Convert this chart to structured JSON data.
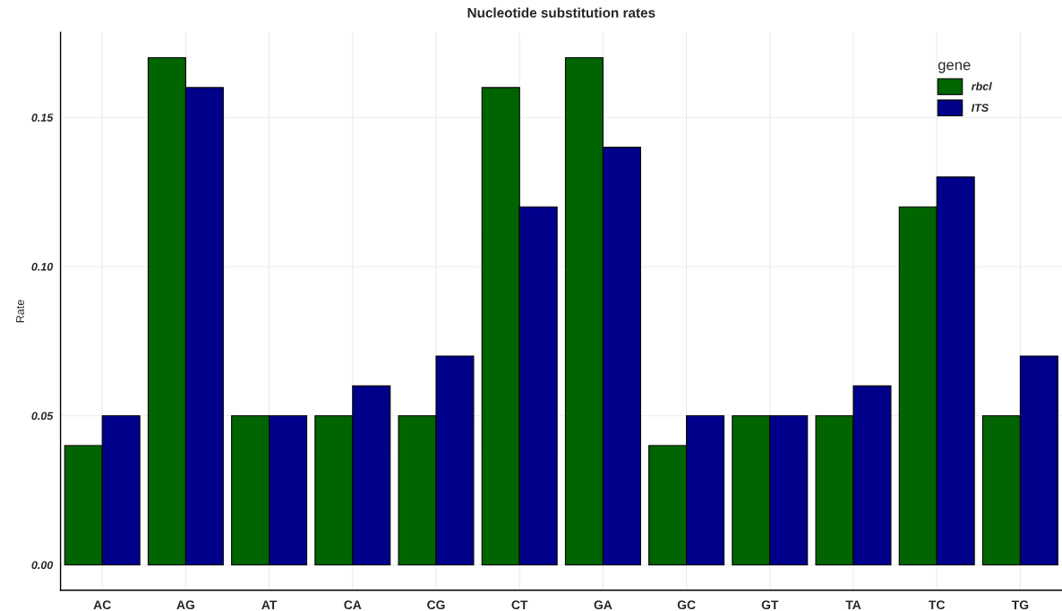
{
  "chart_data": {
    "type": "bar",
    "title": "Nucleotide substitution rates",
    "ylabel": "Rate",
    "legend_title": "gene",
    "categories": [
      "AC",
      "AG",
      "AT",
      "CA",
      "CG",
      "CT",
      "GA",
      "GC",
      "GT",
      "TA",
      "TC",
      "TG"
    ],
    "series": [
      {
        "name": "rbcl",
        "color": "#006400",
        "values": [
          0.04,
          0.17,
          0.05,
          0.05,
          0.05,
          0.16,
          0.17,
          0.04,
          0.05,
          0.05,
          0.12,
          0.05
        ]
      },
      {
        "name": "ITS",
        "color": "#00008b",
        "values": [
          0.05,
          0.16,
          0.05,
          0.06,
          0.07,
          0.12,
          0.14,
          0.05,
          0.05,
          0.06,
          0.13,
          0.07
        ]
      }
    ],
    "ylim": [
      -0.0085,
      0.1785
    ],
    "yticks": [
      {
        "value": 0,
        "label": "0.00"
      },
      {
        "value": 0.05,
        "label": "0.05"
      },
      {
        "value": 0.1,
        "label": "0.10"
      },
      {
        "value": 0.15,
        "label": "0.15"
      }
    ],
    "grid": true,
    "legend": "top right"
  }
}
